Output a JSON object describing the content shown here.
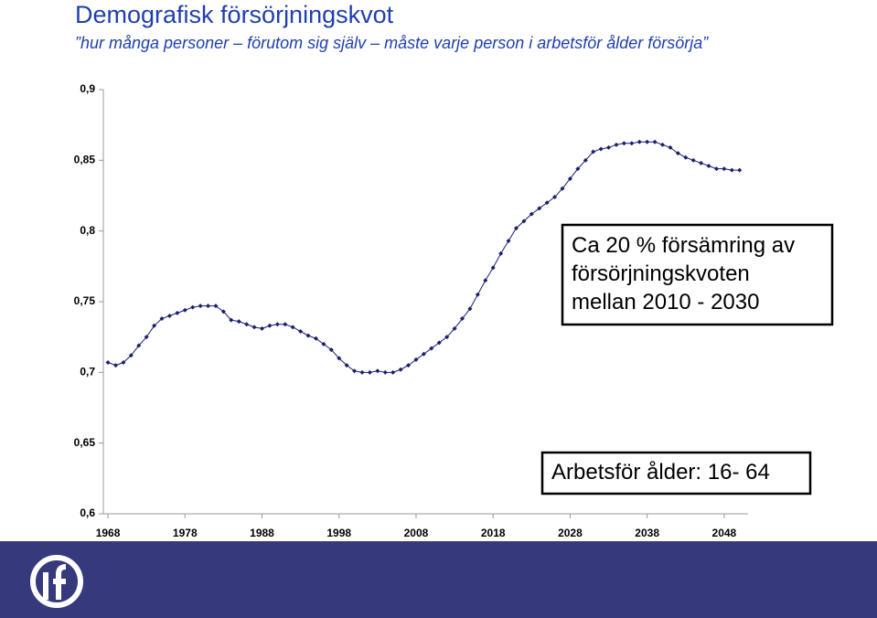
{
  "chart_data": {
    "type": "line",
    "title": "Demografisk försörjningskvot",
    "subtitle": "”hur många personer – förutom sig själv – måste varje person i arbetsför ålder försörja”",
    "annotations": [
      [
        "Ca 20 % försämring av",
        "försörjningskvoten",
        "mellan 2010 - 2030"
      ],
      [
        "Arbetsför ålder: 16- 64"
      ]
    ],
    "x": [
      1968,
      1969,
      1970,
      1971,
      1972,
      1973,
      1974,
      1975,
      1976,
      1977,
      1978,
      1979,
      1980,
      1981,
      1982,
      1983,
      1984,
      1985,
      1986,
      1987,
      1988,
      1989,
      1990,
      1991,
      1992,
      1993,
      1994,
      1995,
      1996,
      1997,
      1998,
      1999,
      2000,
      2001,
      2002,
      2003,
      2004,
      2005,
      2006,
      2007,
      2008,
      2009,
      2010,
      2011,
      2012,
      2013,
      2014,
      2015,
      2016,
      2017,
      2018,
      2019,
      2020,
      2021,
      2022,
      2023,
      2024,
      2025,
      2026,
      2027,
      2028,
      2029,
      2030,
      2031,
      2032,
      2033,
      2034,
      2035,
      2036,
      2037,
      2038,
      2039,
      2040,
      2041,
      2042,
      2043,
      2044,
      2045,
      2046,
      2047,
      2048,
      2049,
      2050
    ],
    "series": [
      {
        "color": "#1a1f6e",
        "values": [
          0.707,
          0.705,
          0.707,
          0.712,
          0.719,
          0.725,
          0.733,
          0.738,
          0.74,
          0.742,
          0.744,
          0.746,
          0.747,
          0.747,
          0.747,
          0.743,
          0.737,
          0.736,
          0.734,
          0.732,
          0.731,
          0.733,
          0.734,
          0.734,
          0.732,
          0.729,
          0.726,
          0.724,
          0.72,
          0.716,
          0.71,
          0.705,
          0.701,
          0.7,
          0.7,
          0.701,
          0.7,
          0.7,
          0.702,
          0.705,
          0.709,
          0.713,
          0.717,
          0.721,
          0.725,
          0.731,
          0.738,
          0.745,
          0.755,
          0.765,
          0.774,
          0.784,
          0.793,
          0.802,
          0.807,
          0.812,
          0.816,
          0.82,
          0.824,
          0.83,
          0.837,
          0.844,
          0.85,
          0.856,
          0.858,
          0.859,
          0.861,
          0.862,
          0.862,
          0.863,
          0.863,
          0.863,
          0.861,
          0.859,
          0.855,
          0.852,
          0.85,
          0.848,
          0.846,
          0.844,
          0.844,
          0.843,
          0.843
        ]
      }
    ],
    "xlim": [
      1967.4,
      2051.1
    ],
    "xticks": [
      1968,
      1978,
      1988,
      1998,
      2008,
      2018,
      2028,
      2038,
      2048
    ],
    "ylim": [
      0.6,
      0.9
    ],
    "yticks": [
      {
        "value": 0.6,
        "label": "0,6"
      },
      {
        "value": 0.65,
        "label": "0,65"
      },
      {
        "value": 0.7,
        "label": "0,7"
      },
      {
        "value": 0.75,
        "label": "0,75"
      },
      {
        "value": 0.8,
        "label": "0,8"
      },
      {
        "value": 0.85,
        "label": "0,85"
      },
      {
        "value": 0.9,
        "label": "0,9"
      }
    ]
  }
}
